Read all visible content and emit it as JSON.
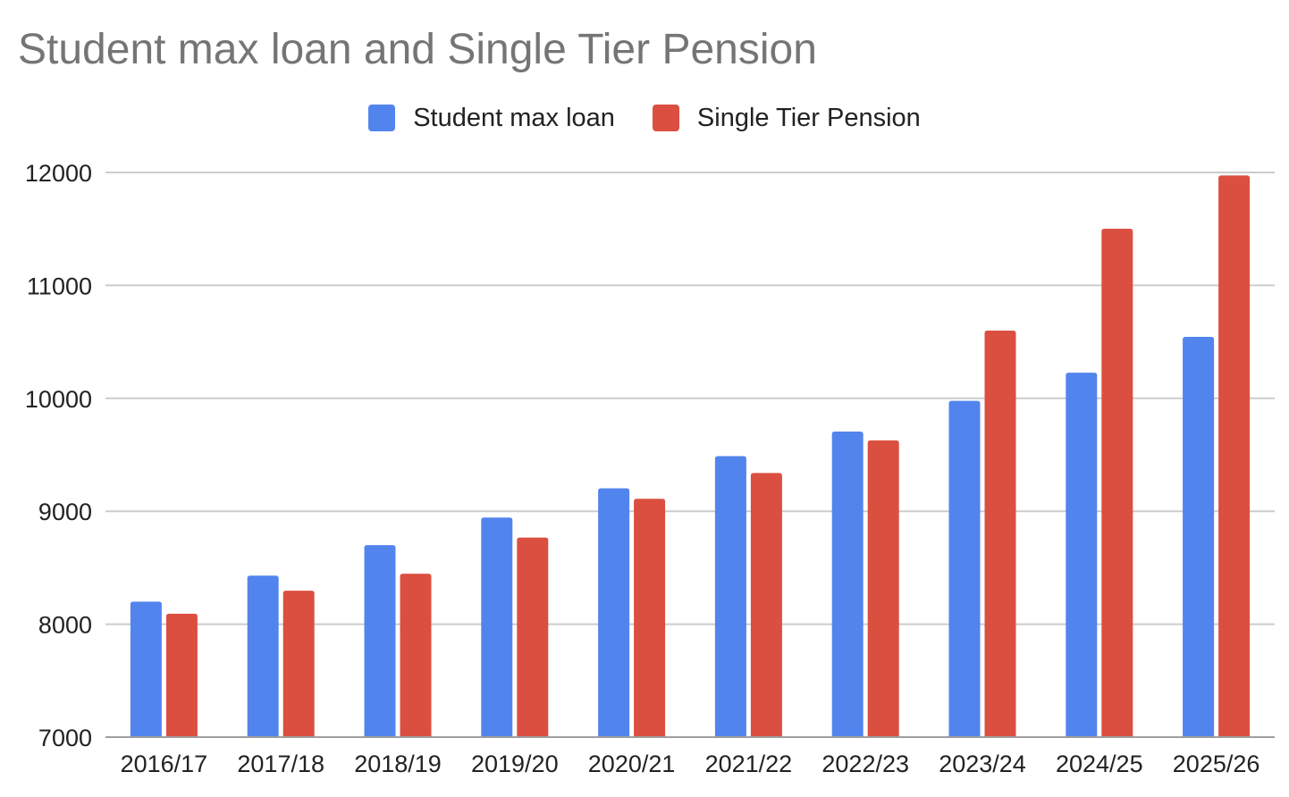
{
  "chart_data": {
    "type": "bar",
    "title": "Student max loan and Single Tier Pension",
    "xlabel": "",
    "ylabel": "",
    "categories": [
      "2016/17",
      "2017/18",
      "2018/19",
      "2019/20",
      "2020/21",
      "2021/22",
      "2022/23",
      "2023/24",
      "2024/25",
      "2025/26"
    ],
    "series": [
      {
        "name": "Student max loan",
        "color": "#5284ee",
        "values": [
          8200,
          8430,
          8700,
          8944,
          9203,
          9488,
          9706,
          9978,
          10227,
          10544
        ]
      },
      {
        "name": "Single Tier Pension",
        "color": "#db4f40",
        "values": [
          8093,
          8296,
          8447,
          8767,
          9110,
          9339,
          9628,
          10600,
          11502,
          11973
        ]
      }
    ],
    "ylim": [
      7000,
      12000
    ],
    "yticks": [
      "7000",
      "8000",
      "9000",
      "10000",
      "11000",
      "12000"
    ],
    "grid": true,
    "legend": "top-center"
  }
}
